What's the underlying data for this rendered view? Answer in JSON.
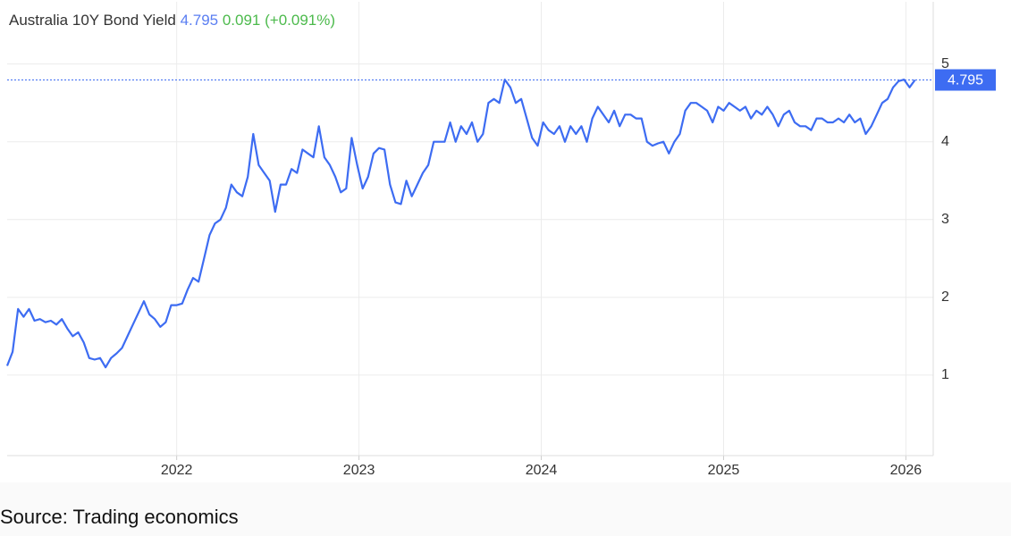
{
  "chart_data": {
    "type": "line",
    "title": "Australia 10Y Bond Yield",
    "last_value": 4.795,
    "change": 0.091,
    "change_label": "(+0.091%)",
    "source": "Source: Trading economics",
    "xlim": [
      2021.07,
      2026.15
    ],
    "xticks": [
      2022,
      2023,
      2024,
      2025,
      2026
    ],
    "ylim": [
      0,
      5.8
    ],
    "yticks": [
      1,
      2,
      3,
      4,
      5
    ],
    "grid": true,
    "series": [
      {
        "color": "#3d6cf2",
        "x": [
          2021.07,
          2021.1,
          2021.13,
          2021.16,
          2021.19,
          2021.22,
          2021.25,
          2021.28,
          2021.31,
          2021.34,
          2021.37,
          2021.4,
          2021.43,
          2021.46,
          2021.49,
          2021.52,
          2021.55,
          2021.58,
          2021.61,
          2021.64,
          2021.67,
          2021.7,
          2021.73,
          2021.76,
          2021.79,
          2021.82,
          2021.85,
          2021.88,
          2021.91,
          2021.94,
          2021.97,
          2022.0,
          2022.03,
          2022.06,
          2022.09,
          2022.12,
          2022.15,
          2022.18,
          2022.21,
          2022.24,
          2022.27,
          2022.3,
          2022.33,
          2022.36,
          2022.39,
          2022.42,
          2022.45,
          2022.48,
          2022.51,
          2022.54,
          2022.57,
          2022.6,
          2022.63,
          2022.66,
          2022.69,
          2022.72,
          2022.75,
          2022.78,
          2022.81,
          2022.84,
          2022.87,
          2022.9,
          2022.93,
          2022.96,
          2022.99,
          2023.02,
          2023.05,
          2023.08,
          2023.11,
          2023.14,
          2023.17,
          2023.2,
          2023.23,
          2023.26,
          2023.29,
          2023.32,
          2023.35,
          2023.38,
          2023.41,
          2023.44,
          2023.47,
          2023.5,
          2023.53,
          2023.56,
          2023.59,
          2023.62,
          2023.65,
          2023.68,
          2023.71,
          2023.74,
          2023.77,
          2023.8,
          2023.83,
          2023.86,
          2023.89,
          2023.92,
          2023.95,
          2023.98,
          2024.01,
          2024.04,
          2024.07,
          2024.1,
          2024.13,
          2024.16,
          2024.19,
          2024.22,
          2024.25,
          2024.28,
          2024.31,
          2024.34,
          2024.37,
          2024.4,
          2024.43,
          2024.46,
          2024.49,
          2024.52,
          2024.55,
          2024.58,
          2024.61,
          2024.64,
          2024.67,
          2024.7,
          2024.73,
          2024.76,
          2024.79,
          2024.82,
          2024.85,
          2024.88,
          2024.91,
          2024.94,
          2024.97,
          2025.0,
          2025.03,
          2025.06,
          2025.09,
          2025.12,
          2025.15,
          2025.18,
          2025.21,
          2025.24,
          2025.27,
          2025.3,
          2025.33,
          2025.36,
          2025.39,
          2025.42,
          2025.45,
          2025.48,
          2025.51,
          2025.54,
          2025.57,
          2025.6,
          2025.63,
          2025.66,
          2025.69,
          2025.72,
          2025.75,
          2025.78,
          2025.81,
          2025.84,
          2025.87,
          2025.9,
          2025.93,
          2025.96,
          2025.99,
          2026.02,
          2026.05
        ],
        "values": [
          1.12,
          1.3,
          1.85,
          1.75,
          1.85,
          1.7,
          1.72,
          1.68,
          1.7,
          1.65,
          1.72,
          1.6,
          1.5,
          1.55,
          1.42,
          1.22,
          1.2,
          1.22,
          1.1,
          1.22,
          1.28,
          1.35,
          1.5,
          1.65,
          1.8,
          1.95,
          1.78,
          1.72,
          1.62,
          1.68,
          1.9,
          1.9,
          1.92,
          2.1,
          2.25,
          2.2,
          2.5,
          2.8,
          2.95,
          3.0,
          3.15,
          3.45,
          3.35,
          3.3,
          3.55,
          4.1,
          3.7,
          3.6,
          3.5,
          3.1,
          3.45,
          3.45,
          3.65,
          3.6,
          3.9,
          3.85,
          3.8,
          4.2,
          3.8,
          3.7,
          3.55,
          3.35,
          3.4,
          4.05,
          3.7,
          3.4,
          3.55,
          3.85,
          3.92,
          3.9,
          3.45,
          3.22,
          3.2,
          3.5,
          3.3,
          3.45,
          3.6,
          3.7,
          4.0,
          4.0,
          4.0,
          4.25,
          4.0,
          4.2,
          4.1,
          4.25,
          4.0,
          4.1,
          4.5,
          4.55,
          4.5,
          4.8,
          4.7,
          4.5,
          4.55,
          4.3,
          4.05,
          3.95,
          4.25,
          4.15,
          4.1,
          4.2,
          4.0,
          4.2,
          4.1,
          4.2,
          4.0,
          4.3,
          4.45,
          4.35,
          4.25,
          4.4,
          4.2,
          4.35,
          4.35,
          4.3,
          4.3,
          4.0,
          3.95,
          3.98,
          4.0,
          3.85,
          4.0,
          4.1,
          4.4,
          4.5,
          4.5,
          4.45,
          4.4,
          4.25,
          4.45,
          4.4,
          4.5,
          4.45,
          4.4,
          4.45,
          4.3,
          4.4,
          4.35,
          4.45,
          4.35,
          4.2,
          4.35,
          4.4,
          4.25,
          4.2,
          4.2,
          4.15,
          4.3,
          4.3,
          4.25,
          4.25,
          4.3,
          4.25,
          4.35,
          4.25,
          4.3,
          4.1,
          4.2,
          4.35,
          4.5,
          4.55,
          4.7,
          4.78,
          4.8,
          4.7,
          4.795
        ]
      }
    ]
  }
}
